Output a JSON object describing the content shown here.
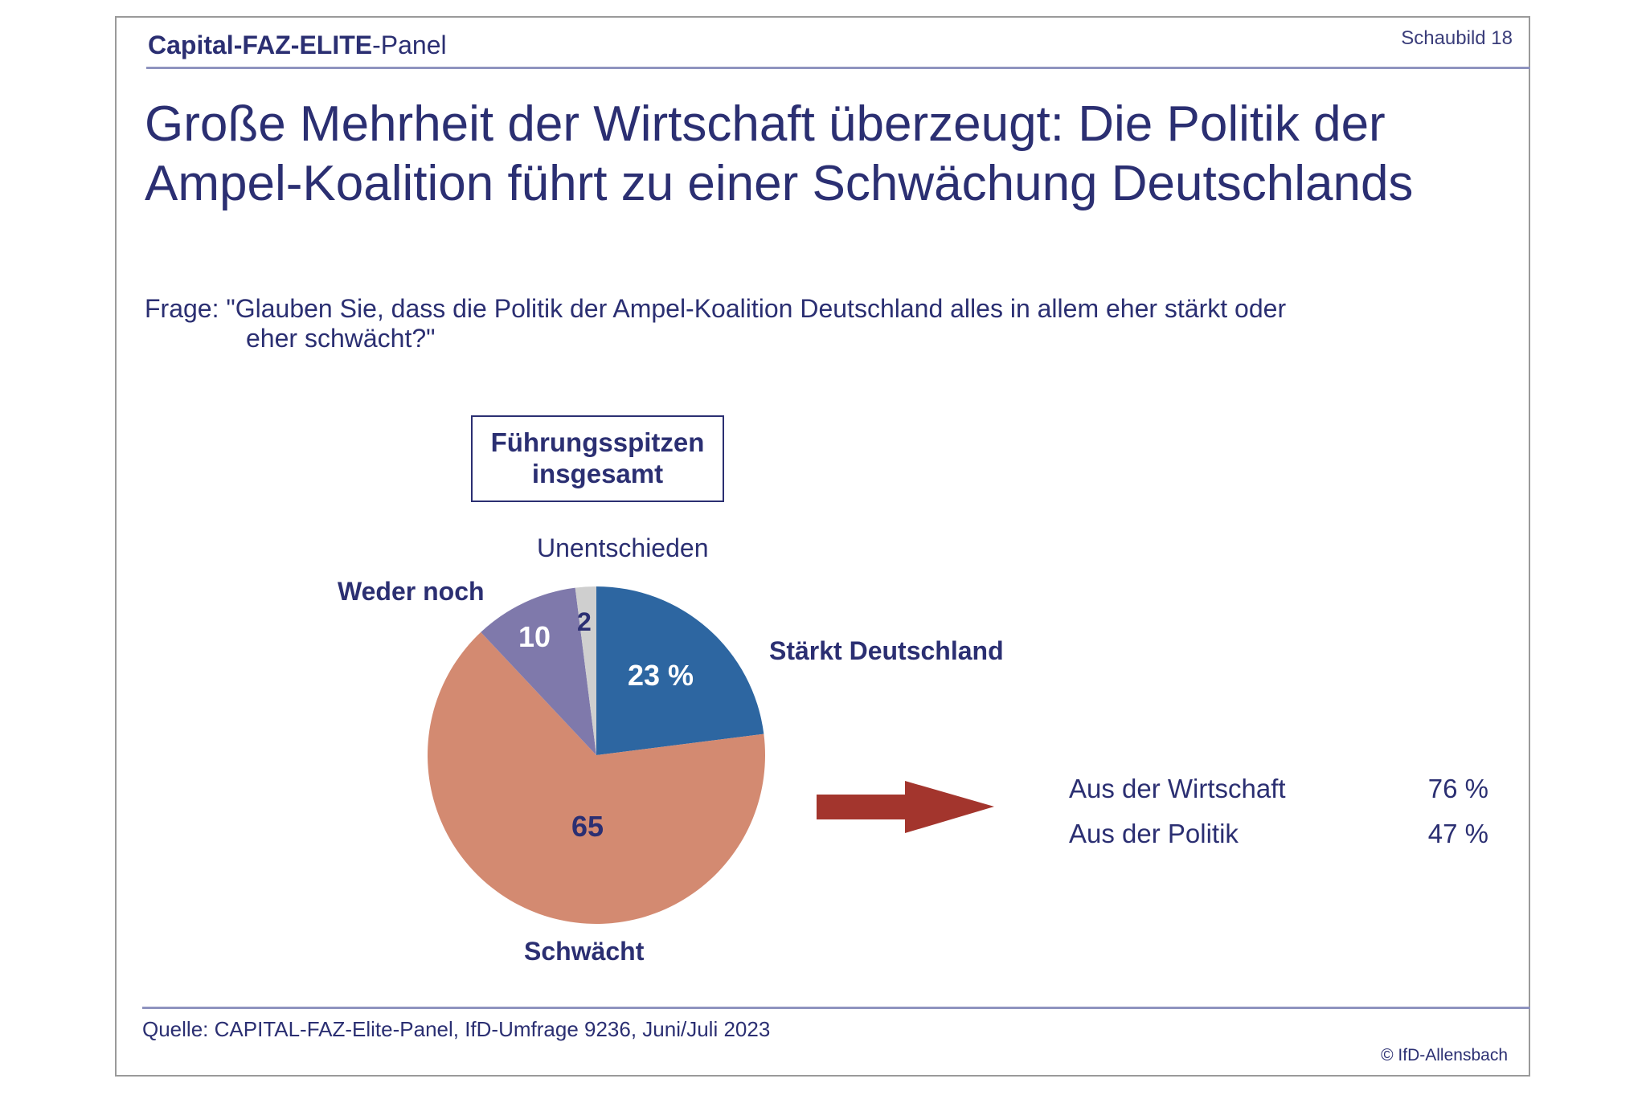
{
  "header": {
    "brand_bold": "Capital-FAZ-ELITE",
    "brand_rest": "-Panel",
    "chart_number": "Schaubild  18"
  },
  "title": "Große Mehrheit der Wirtschaft überzeugt: Die Politik der Ampel-Koalition führt zu einer Schwächung Deutschlands",
  "question": {
    "line1": "Frage: \"Glauben Sie, dass die Politik der Ampel-Koalition Deutschland alles in allem eher stärkt oder",
    "line2": "eher schwächt?\""
  },
  "group_box": {
    "line1": "Führungsspitzen",
    "line2": "insgesamt"
  },
  "chart_data": {
    "type": "pie",
    "title": "Führungsspitzen insgesamt",
    "unit": "%",
    "slices": [
      {
        "label": "Stärkt Deutschland",
        "value": 23,
        "value_label": "23 %",
        "color": "#2d66a1"
      },
      {
        "label": "Schwächt",
        "value": 65,
        "value_label": "65",
        "color": "#d38a71"
      },
      {
        "label": "Weder noch",
        "value": 10,
        "value_label": "10",
        "color": "#7f79ab"
      },
      {
        "label": "Unentschieden",
        "value": 2,
        "value_label": "2",
        "color": "#cfcfcf"
      }
    ],
    "start": "top",
    "direction": "clockwise"
  },
  "breakdown": {
    "arrow_color": "#a3352d",
    "rows": [
      {
        "label": "Aus der Wirtschaft",
        "value": "76 %"
      },
      {
        "label": "Aus der Politik",
        "value": "47 %"
      }
    ]
  },
  "footer": {
    "source": "Quelle: CAPITAL-FAZ-Elite-Panel, IfD-Umfrage 9236, Juni/Juli 2023",
    "copyright": "© IfD-Allensbach"
  }
}
